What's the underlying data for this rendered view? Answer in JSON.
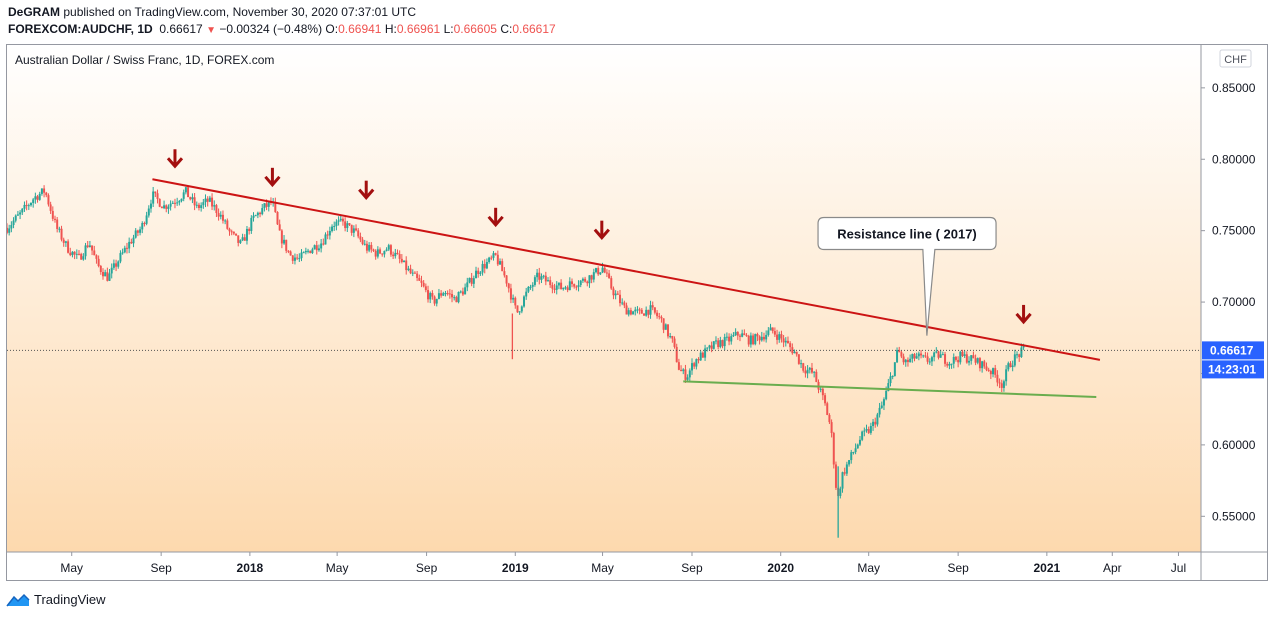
{
  "header": {
    "publisher": "DeGRAM",
    "published_text": "published on TradingView.com, November 30, 2020 07:37:01 UTC",
    "symbol": "FOREXCOM:AUDCHF, 1D",
    "last": "0.66617",
    "change": "−0.00324 (−0.48%)",
    "o_label": "O:",
    "o": "0.66941",
    "h_label": "H:",
    "h": "0.66961",
    "l_label": "L:",
    "l": "0.66605",
    "c_label": "C:",
    "c": "0.66617"
  },
  "chart_data": {
    "type": "candlestick",
    "title": "Australian Dollar / Swiss Franc, 1D, FOREX.com",
    "currency": "CHF",
    "y_ticks": [
      "0.85000",
      "0.80000",
      "0.75000",
      "0.70000",
      "0.65000",
      "0.60000",
      "0.55000"
    ],
    "x_ticks": [
      "May",
      "Sep",
      "2018",
      "May",
      "Sep",
      "2019",
      "May",
      "Sep",
      "2020",
      "May",
      "Sep",
      "2021",
      "Apr",
      "Jul"
    ],
    "ylim": [
      0.525,
      0.88
    ],
    "xlim": [
      "2017-02-01",
      "2021-08-01"
    ],
    "price_label": "0.66617",
    "countdown_label": "14:23:01",
    "last_price": 0.66617,
    "background": "gradient white to orange",
    "series": [
      {
        "name": "price",
        "color": "#26a69a",
        "down_color": "#ef5350",
        "points": [
          [
            "2017-02-01",
            0.752
          ],
          [
            "2017-02-20",
            0.762
          ],
          [
            "2017-03-10",
            0.773
          ],
          [
            "2017-03-25",
            0.778
          ],
          [
            "2017-04-10",
            0.752
          ],
          [
            "2017-04-25",
            0.738
          ],
          [
            "2017-05-10",
            0.73
          ],
          [
            "2017-05-25",
            0.742
          ],
          [
            "2017-06-05",
            0.726
          ],
          [
            "2017-06-20",
            0.717
          ],
          [
            "2017-07-05",
            0.73
          ],
          [
            "2017-07-20",
            0.742
          ],
          [
            "2017-08-05",
            0.752
          ],
          [
            "2017-08-20",
            0.775
          ],
          [
            "2017-09-05",
            0.767
          ],
          [
            "2017-09-20",
            0.771
          ],
          [
            "2017-10-05",
            0.777
          ],
          [
            "2017-10-20",
            0.766
          ],
          [
            "2017-11-05",
            0.771
          ],
          [
            "2017-11-20",
            0.762
          ],
          [
            "2017-12-05",
            0.748
          ],
          [
            "2017-12-20",
            0.74
          ],
          [
            "2018-01-05",
            0.758
          ],
          [
            "2018-01-20",
            0.766
          ],
          [
            "2018-02-01",
            0.77
          ],
          [
            "2018-02-10",
            0.748
          ],
          [
            "2018-02-25",
            0.733
          ],
          [
            "2018-03-10",
            0.73
          ],
          [
            "2018-03-25",
            0.737
          ],
          [
            "2018-04-10",
            0.742
          ],
          [
            "2018-04-25",
            0.755
          ],
          [
            "2018-05-10",
            0.755
          ],
          [
            "2018-05-25",
            0.749
          ],
          [
            "2018-06-10",
            0.738
          ],
          [
            "2018-06-25",
            0.734
          ],
          [
            "2018-07-10",
            0.738
          ],
          [
            "2018-07-25",
            0.73
          ],
          [
            "2018-08-10",
            0.72
          ],
          [
            "2018-08-25",
            0.712
          ],
          [
            "2018-09-10",
            0.7
          ],
          [
            "2018-09-25",
            0.708
          ],
          [
            "2018-10-10",
            0.702
          ],
          [
            "2018-10-25",
            0.71
          ],
          [
            "2018-11-10",
            0.722
          ],
          [
            "2018-11-25",
            0.728
          ],
          [
            "2018-12-05",
            0.732
          ],
          [
            "2018-12-20",
            0.715
          ],
          [
            "2019-01-03",
            0.692
          ],
          [
            "2019-01-15",
            0.705
          ],
          [
            "2019-02-01",
            0.718
          ],
          [
            "2019-02-15",
            0.714
          ],
          [
            "2019-03-05",
            0.71
          ],
          [
            "2019-03-20",
            0.713
          ],
          [
            "2019-04-05",
            0.715
          ],
          [
            "2019-04-20",
            0.72
          ],
          [
            "2019-05-01",
            0.724
          ],
          [
            "2019-05-15",
            0.708
          ],
          [
            "2019-06-01",
            0.695
          ],
          [
            "2019-06-20",
            0.692
          ],
          [
            "2019-07-05",
            0.695
          ],
          [
            "2019-07-20",
            0.688
          ],
          [
            "2019-08-05",
            0.672
          ],
          [
            "2019-08-15",
            0.652
          ],
          [
            "2019-08-25",
            0.648
          ],
          [
            "2019-09-05",
            0.659
          ],
          [
            "2019-09-20",
            0.665
          ],
          [
            "2019-10-05",
            0.671
          ],
          [
            "2019-10-20",
            0.673
          ],
          [
            "2019-11-05",
            0.678
          ],
          [
            "2019-11-20",
            0.673
          ],
          [
            "2019-12-05",
            0.676
          ],
          [
            "2019-12-20",
            0.68
          ],
          [
            "2020-01-05",
            0.673
          ],
          [
            "2020-01-20",
            0.665
          ],
          [
            "2020-02-01",
            0.654
          ],
          [
            "2020-02-15",
            0.65
          ],
          [
            "2020-03-01",
            0.63
          ],
          [
            "2020-03-10",
            0.612
          ],
          [
            "2020-03-19",
            0.56
          ],
          [
            "2020-03-25",
            0.578
          ],
          [
            "2020-04-05",
            0.59
          ],
          [
            "2020-04-20",
            0.605
          ],
          [
            "2020-05-05",
            0.612
          ],
          [
            "2020-05-20",
            0.628
          ],
          [
            "2020-06-05",
            0.655
          ],
          [
            "2020-06-10",
            0.666
          ],
          [
            "2020-06-20",
            0.657
          ],
          [
            "2020-07-05",
            0.662
          ],
          [
            "2020-07-20",
            0.659
          ],
          [
            "2020-08-05",
            0.663
          ],
          [
            "2020-08-20",
            0.658
          ],
          [
            "2020-09-05",
            0.662
          ],
          [
            "2020-09-20",
            0.66
          ],
          [
            "2020-10-05",
            0.656
          ],
          [
            "2020-10-20",
            0.65
          ],
          [
            "2020-11-01",
            0.642
          ],
          [
            "2020-11-10",
            0.656
          ],
          [
            "2020-11-20",
            0.662
          ],
          [
            "2020-11-30",
            0.666
          ]
        ]
      }
    ],
    "trendlines": [
      {
        "name": "resistance",
        "color": "#cc1414",
        "from": [
          "2017-08-20",
          0.786
        ],
        "to": [
          "2021-03-15",
          0.6595
        ]
      },
      {
        "name": "support",
        "color": "#6aad4e",
        "from": [
          "2019-08-20",
          0.6445
        ],
        "to": [
          "2021-03-10",
          0.6335
        ]
      }
    ],
    "arrows": [
      {
        "date": "2017-09-20",
        "value": 0.8
      },
      {
        "date": "2018-02-01",
        "value": 0.787
      },
      {
        "date": "2018-06-10",
        "value": 0.778
      },
      {
        "date": "2018-12-05",
        "value": 0.759
      },
      {
        "date": "2019-04-30",
        "value": 0.75
      },
      {
        "date": "2020-11-30",
        "value": 0.691
      }
    ],
    "annotation": {
      "text": "Resistance line ( 2017)",
      "date": "2020-06-20",
      "value": 0.748,
      "pointer_date": "2020-07-20",
      "pointer_value": 0.6765
    }
  },
  "footer": {
    "brand": "TradingView"
  }
}
